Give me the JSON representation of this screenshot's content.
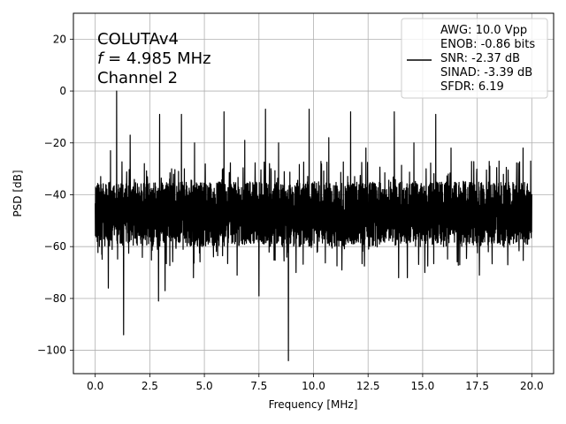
{
  "chart_data": {
    "type": "line",
    "xlabel": "Frequency [MHz]",
    "ylabel": "PSD [dB]",
    "xlim": [
      -1.0,
      21.0
    ],
    "ylim": [
      -109,
      30
    ],
    "xticks": [
      0.0,
      2.5,
      5.0,
      7.5,
      10.0,
      12.5,
      15.0,
      17.5,
      20.0
    ],
    "xtick_labels": [
      "0.0",
      "2.5",
      "5.0",
      "7.5",
      "10.0",
      "12.5",
      "15.0",
      "17.5",
      "20.0"
    ],
    "yticks": [
      -100,
      -80,
      -60,
      -40,
      -20,
      0,
      20
    ],
    "ytick_labels": [
      "−100",
      "−80",
      "−60",
      "−40",
      "−20",
      "0",
      "20"
    ],
    "grid": true,
    "annotation": {
      "line1": "COLUTAv4",
      "line2_italic": "f",
      "line2_rest": " = 4.985 MHz",
      "line3": "Channel 2"
    },
    "legend": {
      "placement": "top-right",
      "lines": [
        "AWG: 10.0 Vpp",
        "ENOB: -0.86 bits",
        "SNR: -2.37 dB",
        "SINAD: -3.39 dB",
        "SFDR: 6.19"
      ]
    },
    "series": [
      {
        "color": "#000000",
        "noise_band": {
          "center": -47,
          "low": -60,
          "high": -35
        },
        "peaks": [
          {
            "x": 0.98,
            "y": 0
          },
          {
            "x": 0.7,
            "y": -23
          },
          {
            "x": 1.6,
            "y": -17
          },
          {
            "x": 2.25,
            "y": -28
          },
          {
            "x": 2.95,
            "y": -9
          },
          {
            "x": 3.5,
            "y": -30
          },
          {
            "x": 3.95,
            "y": -9
          },
          {
            "x": 4.55,
            "y": -20
          },
          {
            "x": 5.9,
            "y": -8
          },
          {
            "x": 6.85,
            "y": -19
          },
          {
            "x": 7.8,
            "y": -7
          },
          {
            "x": 8.4,
            "y": -20
          },
          {
            "x": 9.8,
            "y": -7
          },
          {
            "x": 10.7,
            "y": -18
          },
          {
            "x": 11.7,
            "y": -8
          },
          {
            "x": 12.4,
            "y": -22
          },
          {
            "x": 13.7,
            "y": -8
          },
          {
            "x": 14.6,
            "y": -20
          },
          {
            "x": 15.6,
            "y": -9
          },
          {
            "x": 16.3,
            "y": -22
          },
          {
            "x": 17.6,
            "y": -9
          },
          {
            "x": 18.5,
            "y": -27
          },
          {
            "x": 19.6,
            "y": -22
          },
          {
            "x": 19.95,
            "y": -27
          }
        ],
        "dips": [
          {
            "x": 0.3,
            "y": -63
          },
          {
            "x": 0.6,
            "y": -76
          },
          {
            "x": 1.3,
            "y": -94
          },
          {
            "x": 2.9,
            "y": -81
          },
          {
            "x": 3.2,
            "y": -77
          },
          {
            "x": 4.5,
            "y": -72
          },
          {
            "x": 6.5,
            "y": -71
          },
          {
            "x": 7.5,
            "y": -79
          },
          {
            "x": 8.85,
            "y": -104
          },
          {
            "x": 9.2,
            "y": -70
          },
          {
            "x": 11.3,
            "y": -69
          },
          {
            "x": 13.9,
            "y": -72
          },
          {
            "x": 14.3,
            "y": -72
          },
          {
            "x": 15.1,
            "y": -70
          },
          {
            "x": 16.7,
            "y": -67
          },
          {
            "x": 17.6,
            "y": -71
          },
          {
            "x": 18.9,
            "y": -67
          }
        ]
      }
    ]
  }
}
